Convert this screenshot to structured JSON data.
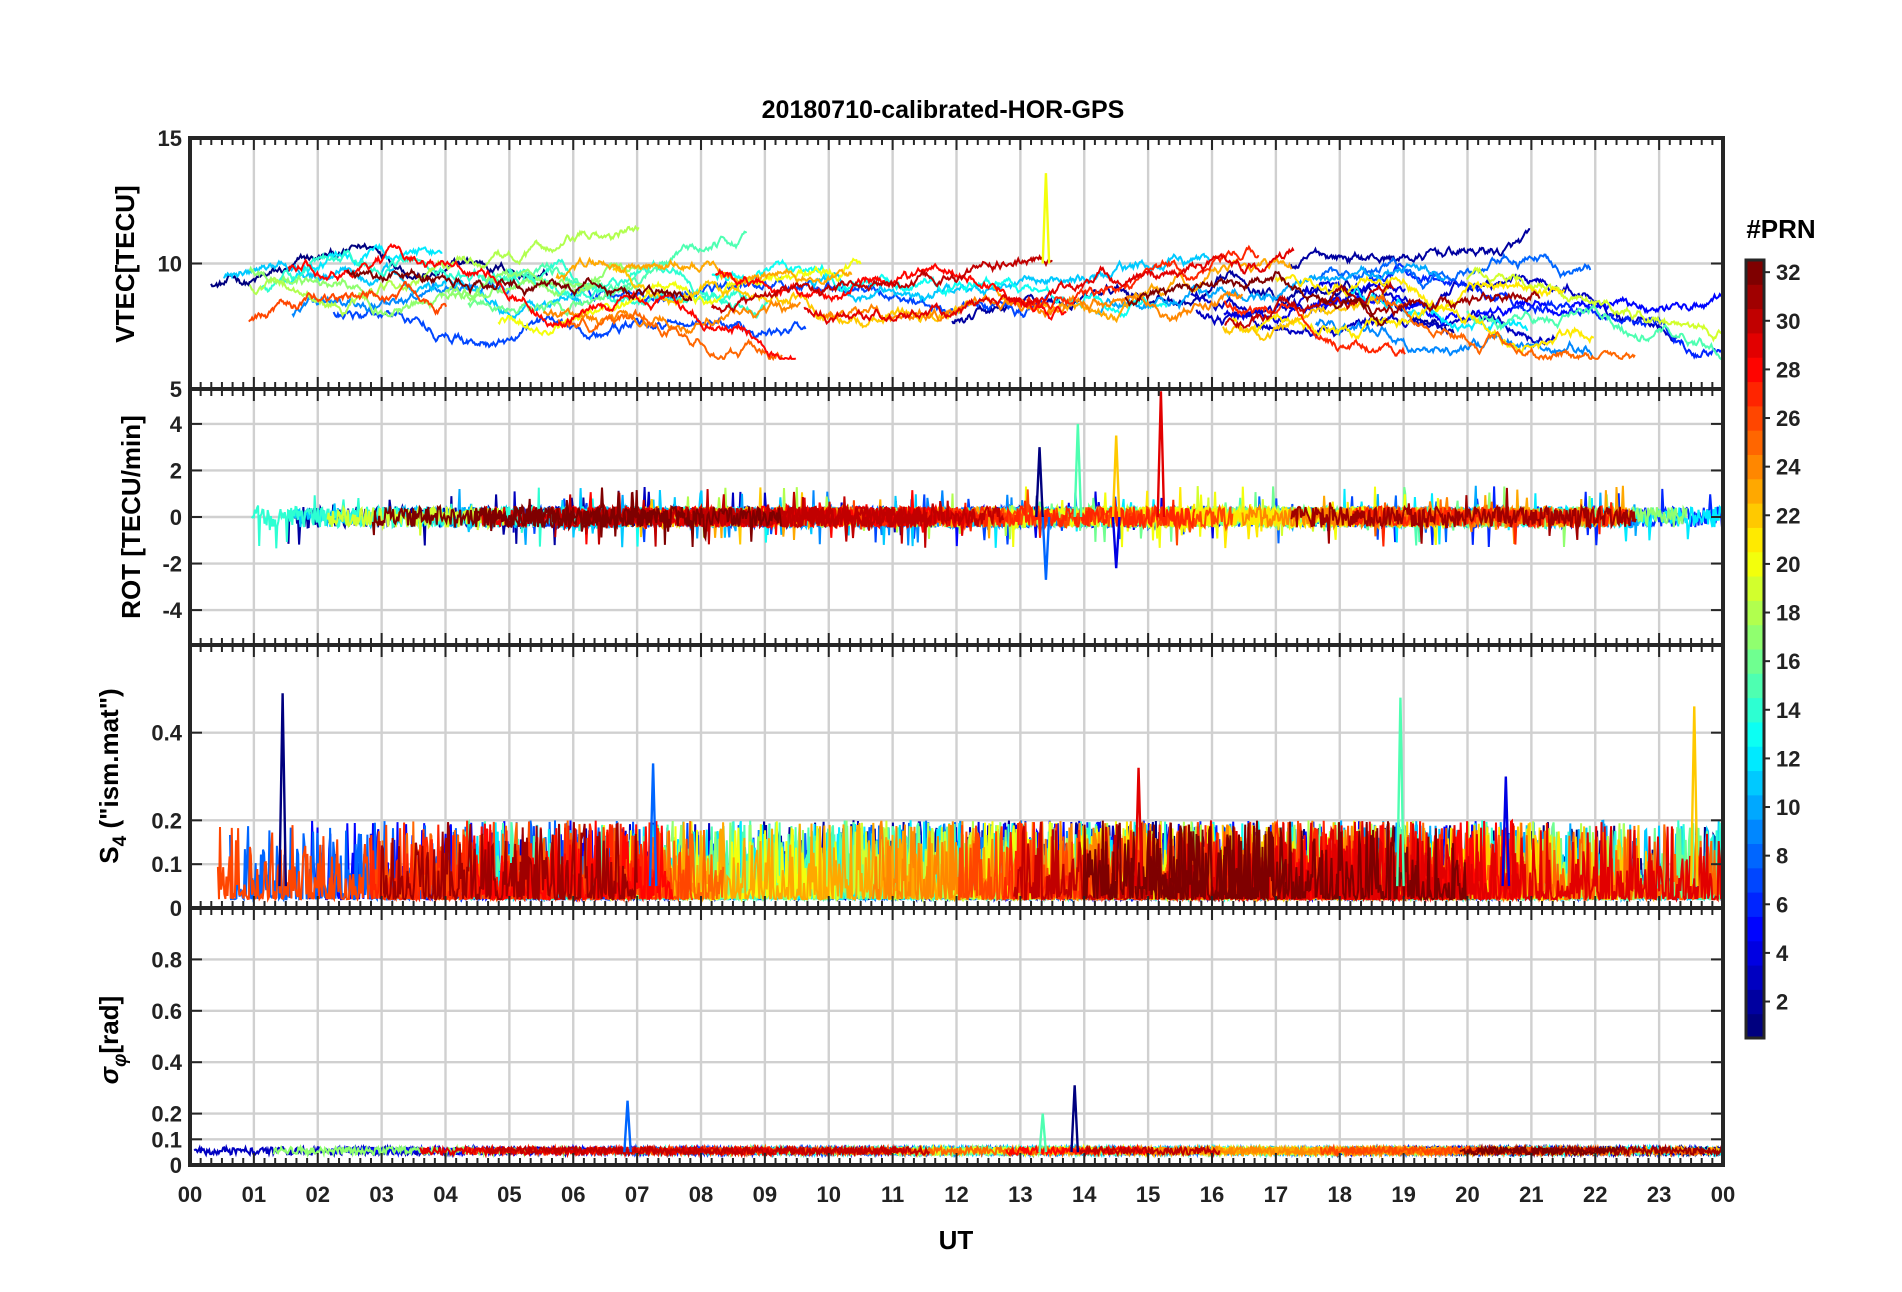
{
  "figure": {
    "title": "20180710-calibrated-HOR-GPS",
    "xlabel": "UT",
    "colorbar": {
      "title": "#PRN",
      "min": 1,
      "max": 32,
      "tick_labels": [
        "2",
        "4",
        "6",
        "8",
        "10",
        "12",
        "14",
        "16",
        "18",
        "20",
        "22",
        "24",
        "26",
        "28",
        "30",
        "32"
      ],
      "colormap": "jet",
      "colors": [
        "#00007f",
        "#0000ff",
        "#007fff",
        "#00ffff",
        "#7fff7f",
        "#ffff00",
        "#ff7f00",
        "#ff0000",
        "#7f0000"
      ]
    }
  },
  "chart_data": [
    {
      "type": "line",
      "name": "vtec",
      "ylabel": "VTEC[TECU]",
      "ylim": [
        5,
        15
      ],
      "yticks": [
        5,
        10,
        15
      ],
      "ytick_labels": [
        "",
        "10",
        "15"
      ],
      "xlim": [
        0,
        24
      ],
      "x_tick_labels": [
        "00",
        "01",
        "02",
        "03",
        "04",
        "05",
        "06",
        "07",
        "08",
        "09",
        "10",
        "11",
        "12",
        "13",
        "14",
        "15",
        "16",
        "17",
        "18",
        "19",
        "20",
        "21",
        "22",
        "23",
        "00"
      ],
      "grid": true,
      "series_count": 32,
      "typical_range": [
        6,
        12
      ],
      "peak": {
        "x": 13.4,
        "y": 13.6,
        "prn": 20
      }
    },
    {
      "type": "line",
      "name": "rot",
      "ylabel": "ROT [TECU/min]",
      "ylim": [
        -5.5,
        5.5
      ],
      "yticks": [
        -4,
        -2,
        0,
        2,
        4
      ],
      "ytick_labels": [
        "-4",
        "-2",
        "0",
        "2",
        "4"
      ],
      "xlim": [
        0,
        24
      ],
      "grid": true,
      "series_count": 32,
      "baseline": 0,
      "spikes": [
        {
          "x": 13.3,
          "y": 3.0
        },
        {
          "x": 13.4,
          "y": -2.7
        },
        {
          "x": 13.9,
          "y": 4.0
        },
        {
          "x": 14.5,
          "y": 3.5
        },
        {
          "x": 15.2,
          "y": 5.4
        },
        {
          "x": 14.5,
          "y": -2.2
        }
      ]
    },
    {
      "type": "line",
      "name": "s4",
      "ylabel": "S4 (\"ism.mat\")",
      "ylabel_main": "S",
      "ylabel_sub": "4",
      "ylabel_rest": " (\"ism.mat\")",
      "ylim": [
        0,
        0.6
      ],
      "yticks": [
        0,
        0.1,
        0.2,
        0.4
      ],
      "ytick_labels": [
        "0",
        "0.1",
        "0.2",
        "0.4"
      ],
      "xlim": [
        0,
        24
      ],
      "grid": true,
      "series_count": 32,
      "peaks": [
        {
          "x": 1.45,
          "y": 0.49
        },
        {
          "x": 7.25,
          "y": 0.33
        },
        {
          "x": 18.95,
          "y": 0.48
        },
        {
          "x": 23.55,
          "y": 0.46
        },
        {
          "x": 14.85,
          "y": 0.32
        },
        {
          "x": 20.6,
          "y": 0.3
        }
      ]
    },
    {
      "type": "line",
      "name": "sigma_phi",
      "ylabel": "σφ[rad]",
      "ylabel_main": "σ",
      "ylabel_sub": "φ",
      "ylabel_rest": "[rad]",
      "ylim": [
        0,
        1
      ],
      "yticks": [
        0,
        0.1,
        0.2,
        0.4,
        0.6,
        0.8
      ],
      "ytick_labels": [
        "0",
        "0.1",
        "0.2",
        "0.4",
        "0.6",
        "0.8"
      ],
      "xlim": [
        0,
        24
      ],
      "grid": true,
      "series_count": 32,
      "baseline": 0.05,
      "peaks": [
        {
          "x": 13.85,
          "y": 0.31
        },
        {
          "x": 6.85,
          "y": 0.25
        },
        {
          "x": 13.35,
          "y": 0.2
        }
      ]
    }
  ]
}
